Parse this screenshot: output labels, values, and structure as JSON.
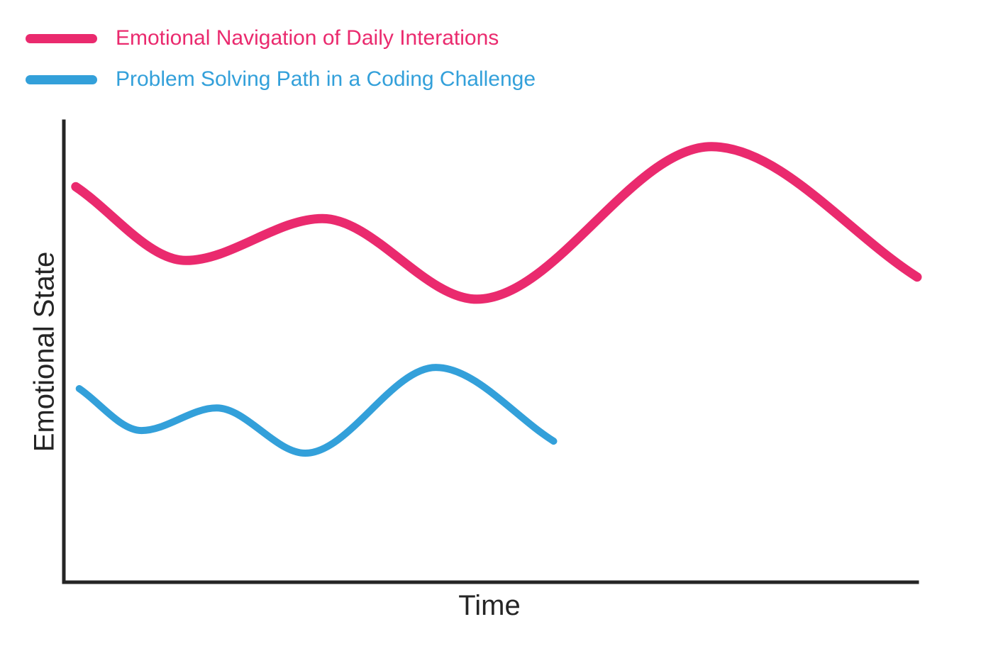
{
  "chart_data": {
    "type": "line",
    "title": "",
    "xlabel": "Time",
    "ylabel": "Emotional State",
    "xlim": [
      0,
      10
    ],
    "ylim": [
      0,
      10
    ],
    "grid": false,
    "legend_position": "top-left",
    "axes_shown": [
      "left",
      "bottom"
    ],
    "tick_labels": "none",
    "axis_color": "#252525",
    "series": [
      {
        "name": "Emotional Navigation of Daily Interations",
        "color": "#EA2A6E",
        "stroke_width": 13,
        "x": [
          0.14,
          1.43,
          3.03,
          4.84,
          7.59,
          10.0
        ],
        "y": [
          8.58,
          6.98,
          7.89,
          6.14,
          9.45,
          6.62
        ]
      },
      {
        "name": "Problem Solving Path in a Coding Challenge",
        "color": "#33A0DA",
        "stroke_width": 10,
        "x": [
          0.18,
          0.91,
          1.79,
          2.83,
          4.36,
          5.74
        ],
        "y": [
          4.2,
          3.29,
          3.78,
          2.8,
          4.66,
          3.06
        ]
      }
    ]
  }
}
